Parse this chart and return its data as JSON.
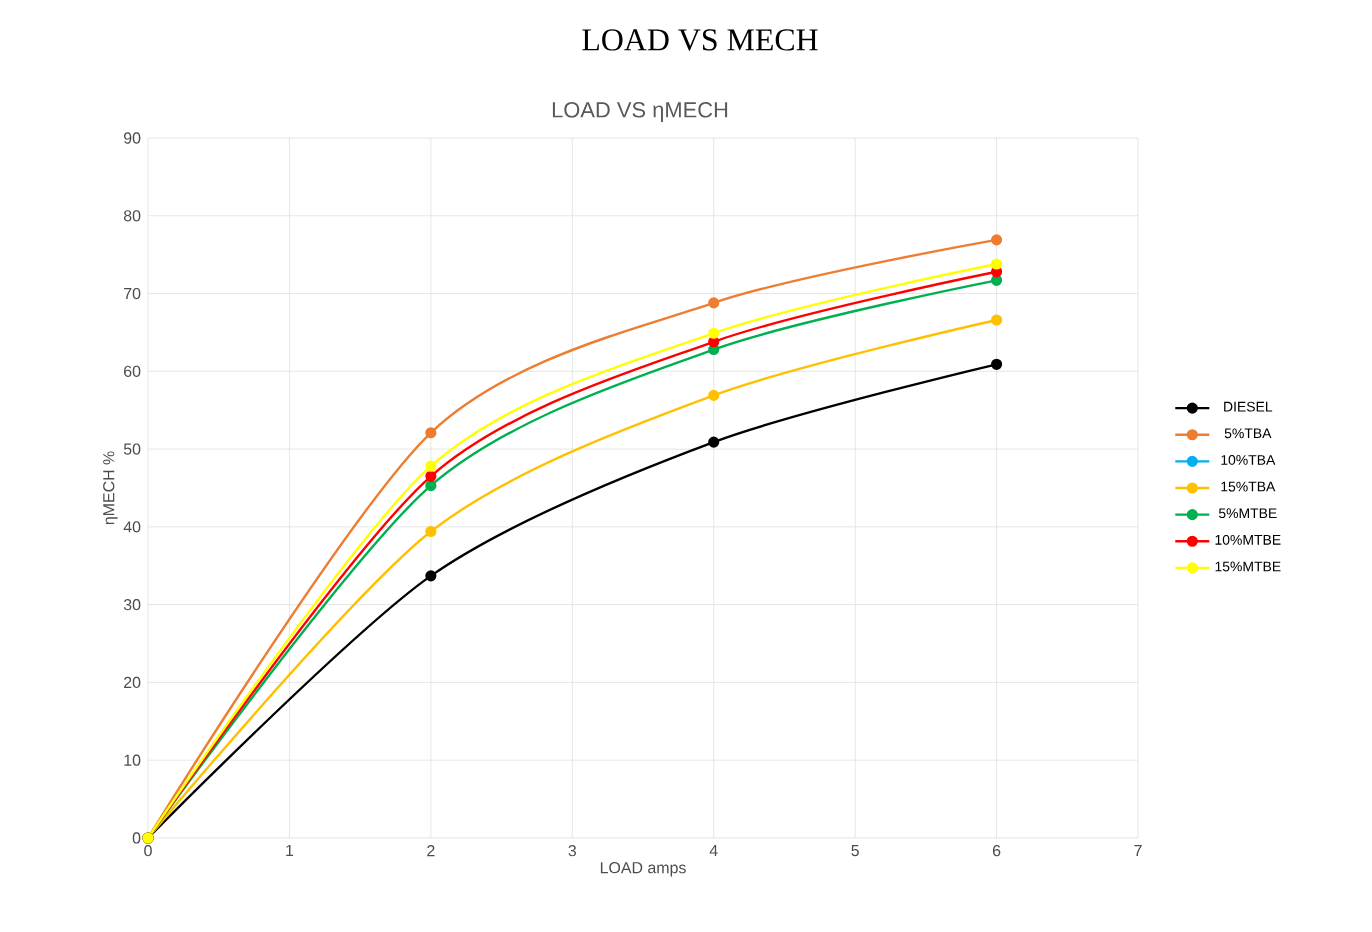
{
  "chart_data": {
    "type": "line",
    "title": "LOAD VS MECH",
    "subtitle": "LOAD  VS  ηMECH",
    "xlabel": "LOAD   amps",
    "ylabel": "ηMECH  %",
    "x": [
      0,
      2,
      4,
      6
    ],
    "series": [
      {
        "name": "DIESEL",
        "color": "#000000",
        "values": [
          0,
          33.7,
          50.9,
          60.9
        ]
      },
      {
        "name": "5%TBA",
        "color": "#ed7d31",
        "values": [
          0,
          52.1,
          68.8,
          76.9
        ]
      },
      {
        "name": "10%TBA",
        "color": "#00b0f0",
        "values": [
          0,
          null,
          null,
          null
        ]
      },
      {
        "name": "15%TBA",
        "color": "#ffc000",
        "values": [
          0,
          39.4,
          56.9,
          66.6
        ]
      },
      {
        "name": "5%MTBE",
        "color": "#00b050",
        "values": [
          0,
          45.3,
          62.8,
          71.7
        ]
      },
      {
        "name": "10%MTBE",
        "color": "#ff0000",
        "values": [
          0,
          46.5,
          63.8,
          72.8
        ]
      },
      {
        "name": "15%MTBE",
        "color": "#ffff00",
        "values": [
          0,
          47.8,
          64.9,
          73.8
        ]
      }
    ],
    "xlim": [
      0,
      7
    ],
    "xticks": [
      0,
      1,
      2,
      3,
      4,
      5,
      6,
      7
    ],
    "ylim": [
      0,
      90
    ],
    "yticks": [
      0,
      10,
      20,
      30,
      40,
      50,
      60,
      70,
      80,
      90
    ],
    "grid": true,
    "legend": "right",
    "marker": "circle",
    "line_style": "solid"
  }
}
